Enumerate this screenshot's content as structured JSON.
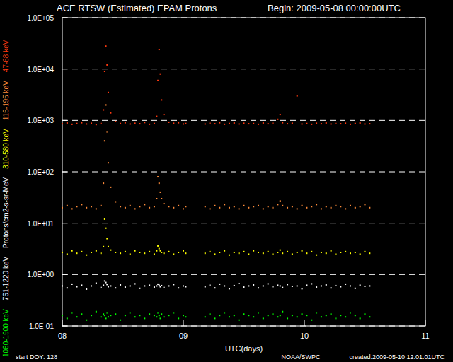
{
  "chart_data": {
    "type": "scatter",
    "title": "ACE RTSW (Estimated) EPAM Protons",
    "subtitle": "Begin: 2009-05-08 00:00:00UTC",
    "x_label": "UTC(days)",
    "y_label": "Protons/cm2-s-sr-MeV",
    "annotations": [
      "start DOY: 128",
      "NOAA/SWPC",
      "created:2009-05-10 12:01:01UTC"
    ],
    "log": "y",
    "grid": true,
    "marker": "square",
    "xlim": [
      8,
      11
    ],
    "xticks": [
      {
        "value": 8,
        "label": "08"
      },
      {
        "value": 9,
        "label": "09"
      },
      {
        "value": 10,
        "label": "10"
      },
      {
        "value": 11,
        "label": "11"
      }
    ],
    "ylim": [
      0.1,
      100000
    ],
    "yticks": [
      {
        "value": 0.1,
        "label": "1.0E-01"
      },
      {
        "value": 1,
        "label": "1.0E+00"
      },
      {
        "value": 10,
        "label": "1.0E+01"
      },
      {
        "value": 100,
        "label": "1.0E+02"
      },
      {
        "value": 1000,
        "label": "1.0E+03"
      },
      {
        "value": 10000,
        "label": "1.0E+04"
      },
      {
        "value": 100000,
        "label": "1.0E+05"
      }
    ],
    "x": [
      8.0,
      8.04,
      8.08,
      8.12,
      8.16,
      8.2,
      8.24,
      8.28,
      8.32,
      8.34,
      8.35,
      8.36,
      8.37,
      8.38,
      8.4,
      8.44,
      8.48,
      8.52,
      8.56,
      8.6,
      8.64,
      8.68,
      8.72,
      8.76,
      8.78,
      8.79,
      8.8,
      8.81,
      8.82,
      8.84,
      8.88,
      8.92,
      8.96,
      9.0,
      9.02,
      9.18,
      9.22,
      9.26,
      9.3,
      9.34,
      9.38,
      9.42,
      9.46,
      9.5,
      9.54,
      9.58,
      9.62,
      9.66,
      9.7,
      9.74,
      9.78,
      9.8,
      9.82,
      9.86,
      9.9,
      9.94,
      9.98,
      10.02,
      10.06,
      10.1,
      10.14,
      10.18,
      10.22,
      10.26,
      10.3,
      10.34,
      10.38,
      10.42,
      10.46,
      10.5,
      10.54
    ],
    "series": [
      {
        "name": "47-68 keV",
        "color": "#ff3a10",
        "values": [
          860,
          890,
          840,
          870,
          900,
          850,
          880,
          830,
          870,
          1600,
          9000,
          28000,
          12000,
          3500,
          1400,
          950,
          870,
          900,
          850,
          880,
          860,
          910,
          840,
          870,
          1200,
          6000,
          24000,
          8000,
          2500,
          1300,
          920,
          880,
          900,
          850,
          870,
          850,
          880,
          860,
          900,
          840,
          870,
          890,
          850,
          880,
          860,
          870,
          840,
          890,
          860,
          880,
          1050,
          1300,
          900,
          860,
          880,
          3000,
          850,
          870,
          840,
          880,
          860,
          890,
          850,
          870,
          860,
          880,
          840,
          870,
          890,
          850,
          860
        ]
      },
      {
        "name": "115-195 keV",
        "color": "#ff8c3a",
        "values": [
          20,
          22,
          19,
          21,
          23,
          20,
          21,
          19,
          22,
          60,
          400,
          2000,
          600,
          150,
          50,
          26,
          21,
          20,
          22,
          19,
          21,
          23,
          20,
          21,
          30,
          80,
          60,
          40,
          30,
          24,
          21,
          20,
          22,
          19,
          21,
          21,
          19,
          22,
          20,
          23,
          20,
          21,
          19,
          22,
          20,
          21,
          22,
          19,
          21,
          20,
          23,
          27,
          22,
          20,
          21,
          19,
          22,
          20,
          21,
          23,
          19,
          21,
          20,
          22,
          21,
          19,
          22,
          20,
          21,
          23,
          20
        ]
      },
      {
        "name": "310-580 keV",
        "color": "#ffff00",
        "values": [
          2.7,
          2.5,
          2.9,
          2.6,
          2.8,
          2.4,
          2.7,
          2.9,
          2.6,
          3.5,
          12,
          8,
          5,
          3.5,
          3.0,
          2.7,
          2.6,
          2.8,
          2.5,
          2.9,
          2.7,
          2.6,
          2.8,
          2.5,
          2.9,
          3.6,
          3.2,
          2.9,
          2.7,
          2.6,
          2.8,
          2.5,
          2.7,
          2.9,
          2.6,
          2.6,
          2.8,
          2.5,
          2.7,
          2.9,
          2.4,
          2.7,
          2.6,
          2.8,
          2.5,
          2.9,
          2.7,
          2.6,
          2.8,
          2.5,
          2.7,
          3.0,
          2.6,
          2.8,
          2.5,
          2.7,
          2.9,
          2.6,
          2.8,
          2.4,
          2.7,
          2.6,
          2.9,
          2.5,
          2.7,
          2.8,
          2.6,
          2.7,
          2.5,
          2.8,
          2.6
        ]
      },
      {
        "name": "761-1220 keV",
        "color": "#ffffff",
        "values": [
          0.6,
          0.55,
          0.65,
          0.58,
          0.62,
          0.52,
          0.6,
          0.68,
          0.56,
          0.62,
          0.75,
          0.7,
          0.64,
          0.58,
          0.6,
          0.55,
          0.63,
          0.57,
          0.6,
          0.66,
          0.54,
          0.6,
          0.62,
          0.57,
          0.6,
          0.65,
          0.62,
          0.58,
          0.61,
          0.56,
          0.6,
          0.64,
          0.55,
          0.6,
          0.58,
          0.58,
          0.62,
          0.55,
          0.65,
          0.6,
          0.53,
          0.61,
          0.67,
          0.57,
          0.6,
          0.63,
          0.55,
          0.6,
          0.66,
          0.58,
          0.62,
          0.6,
          0.56,
          0.64,
          0.59,
          0.6,
          0.53,
          0.62,
          0.66,
          0.57,
          0.6,
          0.63,
          0.55,
          0.61,
          0.58,
          0.65,
          0.6,
          0.54,
          0.62,
          0.59,
          0.6
        ]
      },
      {
        "name": "1060-1900 keV",
        "color": "#00ff00",
        "values": [
          0.16,
          0.14,
          0.18,
          0.15,
          0.17,
          0.13,
          0.16,
          0.19,
          0.15,
          0.17,
          0.16,
          0.14,
          0.18,
          0.15,
          0.16,
          0.17,
          0.13,
          0.16,
          0.18,
          0.15,
          0.16,
          0.14,
          0.17,
          0.16,
          0.15,
          0.18,
          0.16,
          0.14,
          0.17,
          0.15,
          0.16,
          0.18,
          0.14,
          0.16,
          0.15,
          0.15,
          0.17,
          0.14,
          0.16,
          0.18,
          0.15,
          0.16,
          0.13,
          0.17,
          0.16,
          0.15,
          0.18,
          0.14,
          0.16,
          0.17,
          0.15,
          0.16,
          0.19,
          0.14,
          0.16,
          0.15,
          0.17,
          0.16,
          0.13,
          0.18,
          0.15,
          0.16,
          0.17,
          0.14,
          0.16,
          0.15,
          0.18,
          0.16,
          0.14,
          0.17,
          0.15
        ]
      }
    ]
  }
}
